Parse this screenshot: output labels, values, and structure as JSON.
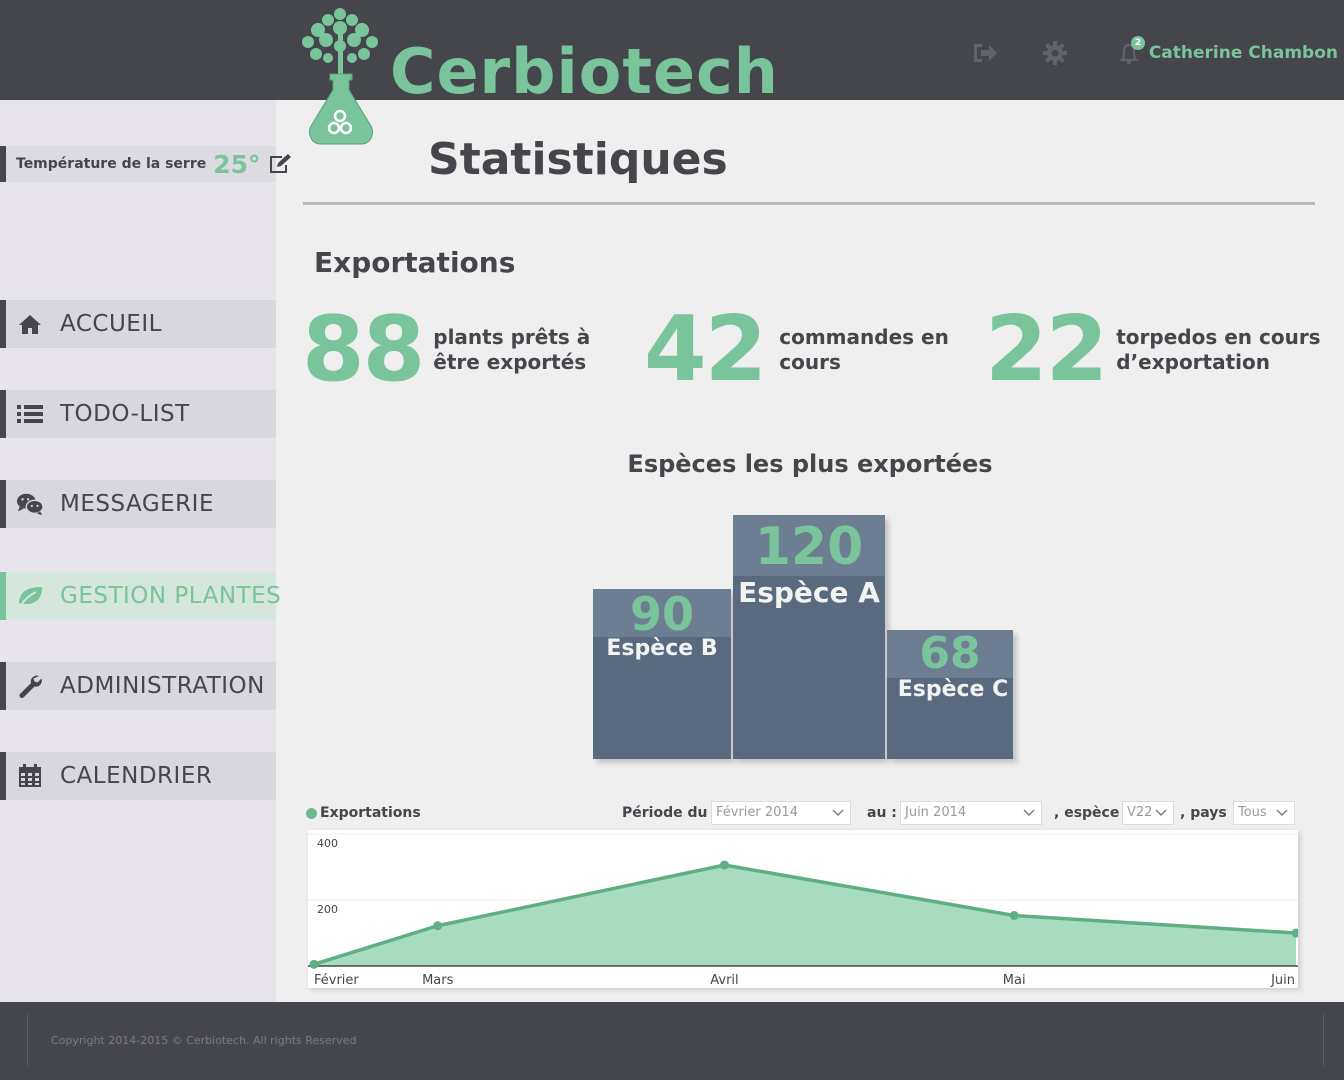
{
  "brand": {
    "name": "Cerbiotech"
  },
  "user": {
    "name": "Catherine Chambon",
    "notification_count": "2"
  },
  "colors": {
    "accent": "#79c49a",
    "dark": "#45454c",
    "podium": "#5a6a7e"
  },
  "sidebar": {
    "temperature": {
      "label": "Température de la serre",
      "value": "25°"
    },
    "items": [
      {
        "label": "ACCUEIL",
        "icon": "home-icon"
      },
      {
        "label": "TODO-LIST",
        "icon": "list-icon"
      },
      {
        "label": "MESSAGERIE",
        "icon": "chat-icon"
      },
      {
        "label": "GESTION PLANTES",
        "icon": "leaf-icon",
        "active": true
      },
      {
        "label": "ADMINISTRATION",
        "icon": "wrench-icon"
      },
      {
        "label": "CALENDRIER",
        "icon": "calendar-icon"
      }
    ]
  },
  "page": {
    "title": "Statistiques"
  },
  "exports": {
    "section_title": "Exportations",
    "stats": [
      {
        "value": "88",
        "line1": "plants prêts à",
        "line2": "être exportés"
      },
      {
        "value": "42",
        "line1": "commandes en",
        "line2": "cours"
      },
      {
        "value": "22",
        "line1": "torpedos en cours",
        "line2": "d’exportation"
      }
    ]
  },
  "podium": {
    "title": "Espèces les plus exportées",
    "items": [
      {
        "name": "Espèce B",
        "value": "90"
      },
      {
        "name": "Espèce A",
        "value": "120"
      },
      {
        "name": "Espèce C",
        "value": "68"
      }
    ]
  },
  "filters": {
    "period_from_label": "Période du :",
    "period_from_value": "Février 2014",
    "period_to_label": "au :",
    "period_to_value": "Juin 2014",
    "species_label": ", espèce :",
    "species_value": "V22",
    "country_label": ", pays :",
    "country_value": "Tous"
  },
  "chart_data": {
    "type": "area",
    "series": [
      {
        "name": "Exportations",
        "values": [
          5,
          122,
          306,
          153,
          100
        ]
      }
    ],
    "categories": [
      "Février",
      "Mars",
      "Avril",
      "Mai",
      "Juin"
    ],
    "ylim": [
      0,
      400
    ],
    "yticks": [
      "400",
      "200"
    ],
    "grid": true,
    "legend": "top-left"
  },
  "footer": {
    "copyright": "Copyright 2014-2015 © Cerbiotech. All rights Reserved"
  }
}
